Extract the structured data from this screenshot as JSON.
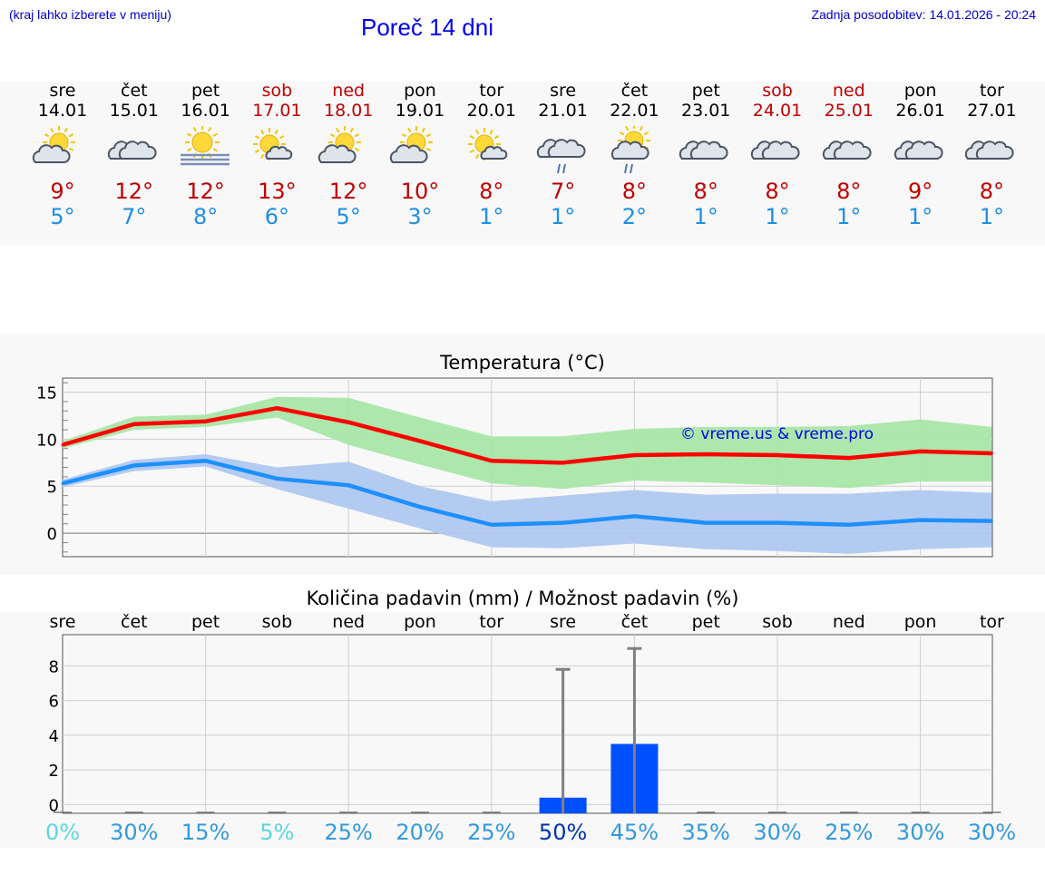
{
  "header": {
    "hint": "(kraj lahko izberete v meniju)",
    "title": "Poreč 14 dni",
    "updated": "Zadnja posodobitev: 14.01.2026 - 20:24"
  },
  "colors": {
    "weekend": "#c00000",
    "max": "#ff0000",
    "min": "#1e90ff",
    "maxband": "#a8e6a8",
    "minband": "#b0c8f0",
    "bar": "#0050ff"
  },
  "days": [
    {
      "name": "sre",
      "date": "14.01",
      "max": "9°",
      "min": "5°",
      "weekend": false,
      "icon": "sun-cloud-icon"
    },
    {
      "name": "čet",
      "date": "15.01",
      "max": "12°",
      "min": "7°",
      "weekend": false,
      "icon": "cloud-icon"
    },
    {
      "name": "pet",
      "date": "16.01",
      "max": "12°",
      "min": "8°",
      "weekend": false,
      "icon": "sun-fog-icon"
    },
    {
      "name": "sob",
      "date": "17.01",
      "max": "13°",
      "min": "6°",
      "weekend": true,
      "icon": "sun-small-cloud-icon"
    },
    {
      "name": "ned",
      "date": "18.01",
      "max": "12°",
      "min": "5°",
      "weekend": true,
      "icon": "sun-cloud-icon"
    },
    {
      "name": "pon",
      "date": "19.01",
      "max": "10°",
      "min": "3°",
      "weekend": false,
      "icon": "sun-cloud-icon"
    },
    {
      "name": "tor",
      "date": "20.01",
      "max": "8°",
      "min": "1°",
      "weekend": false,
      "icon": "sun-small-cloud-icon"
    },
    {
      "name": "sre",
      "date": "21.01",
      "max": "7°",
      "min": "1°",
      "weekend": false,
      "icon": "cloud-rain-icon"
    },
    {
      "name": "čet",
      "date": "22.01",
      "max": "8°",
      "min": "2°",
      "weekend": false,
      "icon": "sun-cloud-rain-icon"
    },
    {
      "name": "pet",
      "date": "23.01",
      "max": "8°",
      "min": "1°",
      "weekend": false,
      "icon": "cloud-icon"
    },
    {
      "name": "sob",
      "date": "24.01",
      "max": "8°",
      "min": "1°",
      "weekend": true,
      "icon": "cloud-icon"
    },
    {
      "name": "ned",
      "date": "25.01",
      "max": "8°",
      "min": "1°",
      "weekend": true,
      "icon": "cloud-icon"
    },
    {
      "name": "pon",
      "date": "26.01",
      "max": "9°",
      "min": "1°",
      "weekend": false,
      "icon": "cloud-icon"
    },
    {
      "name": "tor",
      "date": "27.01",
      "max": "8°",
      "min": "1°",
      "weekend": false,
      "icon": "cloud-icon"
    }
  ],
  "chart_data": [
    {
      "type": "line",
      "title": "Temperatura (°C)",
      "watermark": "© vreme.us & vreme.pro",
      "ylim": [
        -2.5,
        16.5
      ],
      "yticks": [
        "15",
        "10",
        "5",
        "0"
      ],
      "series": [
        {
          "name": "max",
          "values": [
            9.4,
            11.6,
            11.9,
            13.3,
            11.8,
            9.8,
            7.7,
            7.5,
            8.3,
            8.4,
            8.3,
            8.0,
            8.7,
            8.5
          ],
          "band_low": [
            9.0,
            11.0,
            11.3,
            12.3,
            9.4,
            7.3,
            5.3,
            4.7,
            5.6,
            5.4,
            5.1,
            4.8,
            5.5,
            5.5
          ],
          "band_high": [
            9.8,
            12.4,
            12.6,
            14.5,
            14.4,
            12.3,
            10.3,
            10.3,
            11.1,
            11.3,
            11.3,
            11.4,
            12.1,
            11.3
          ]
        },
        {
          "name": "min",
          "values": [
            5.3,
            7.2,
            7.7,
            5.8,
            5.1,
            2.8,
            0.9,
            1.1,
            1.8,
            1.1,
            1.1,
            0.9,
            1.4,
            1.3
          ],
          "band_low": [
            4.9,
            6.6,
            7.1,
            4.7,
            2.6,
            0.5,
            -1.5,
            -1.6,
            -1.1,
            -1.7,
            -1.9,
            -2.2,
            -1.7,
            -1.5
          ],
          "band_high": [
            5.7,
            7.8,
            8.4,
            7.0,
            7.6,
            5.0,
            3.4,
            4.0,
            4.6,
            4.1,
            4.2,
            4.2,
            4.6,
            4.3
          ]
        }
      ]
    },
    {
      "type": "bar",
      "title": "Količina padavin (mm) / Možnost padavin (%)",
      "categories": [
        "sre",
        "čet",
        "pet",
        "sob",
        "ned",
        "pon",
        "tor",
        "sre",
        "čet",
        "pet",
        "sob",
        "ned",
        "pon",
        "tor"
      ],
      "ylim": [
        -0.5,
        9.8
      ],
      "yticks": [
        "8",
        "6",
        "4",
        "2",
        "0"
      ],
      "values": [
        0,
        0,
        0,
        0,
        0,
        0,
        0,
        0.4,
        3.5,
        0,
        0,
        0,
        0,
        0
      ],
      "error_high": [
        0,
        0,
        0,
        0,
        0,
        0,
        0,
        7.8,
        9.0,
        0,
        0,
        0,
        0,
        0
      ],
      "probability": [
        "0%",
        "30%",
        "15%",
        "5%",
        "25%",
        "20%",
        "25%",
        "50%",
        "45%",
        "35%",
        "30%",
        "25%",
        "30%",
        "30%"
      ],
      "probability_colors": [
        "#5cd6e0",
        "#3399dd",
        "#3399dd",
        "#5cd6e0",
        "#3399dd",
        "#3399dd",
        "#3399dd",
        "#0033aa",
        "#3399dd",
        "#3399dd",
        "#3399dd",
        "#3399dd",
        "#3399dd",
        "#3399dd"
      ]
    }
  ]
}
